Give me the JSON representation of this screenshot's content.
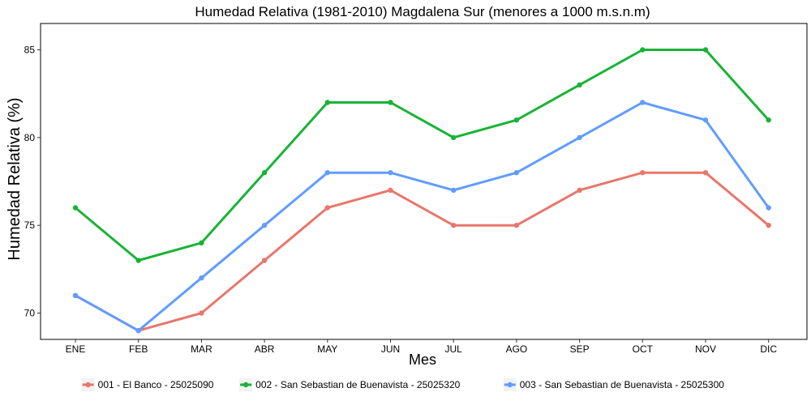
{
  "chart_data": {
    "type": "line",
    "title": "Humedad Relativa (1981-2010) Magdalena Sur (menores a 1000 m.s.n.m)",
    "xlabel": "Mes",
    "ylabel": "Humedad Relativa (%)",
    "categories": [
      "ENE",
      "FEB",
      "MAR",
      "ABR",
      "MAY",
      "JUN",
      "JUL",
      "AGO",
      "SEP",
      "OCT",
      "NOV",
      "DIC"
    ],
    "ylim": [
      68.5,
      86.5
    ],
    "yticks": [
      "70",
      "75",
      "80",
      "85"
    ],
    "grid": false,
    "legend_position": "bottom",
    "series": [
      {
        "name": "001 - El Banco - 25025090",
        "color": "#E8766D",
        "values": [
          71,
          69,
          70,
          73,
          76,
          77,
          75,
          75,
          77,
          78,
          78,
          75
        ]
      },
      {
        "name": "002 - San Sebastian de Buenavista - 25025320",
        "color": "#19B337",
        "values": [
          76,
          73,
          74,
          78,
          82,
          82,
          80,
          81,
          83,
          85,
          85,
          81
        ]
      },
      {
        "name": "003 - San Sebastian de Buenavista - 25025300",
        "color": "#619CFF",
        "values": [
          71,
          69,
          72,
          75,
          78,
          78,
          77,
          78,
          80,
          82,
          81,
          76
        ]
      }
    ]
  }
}
